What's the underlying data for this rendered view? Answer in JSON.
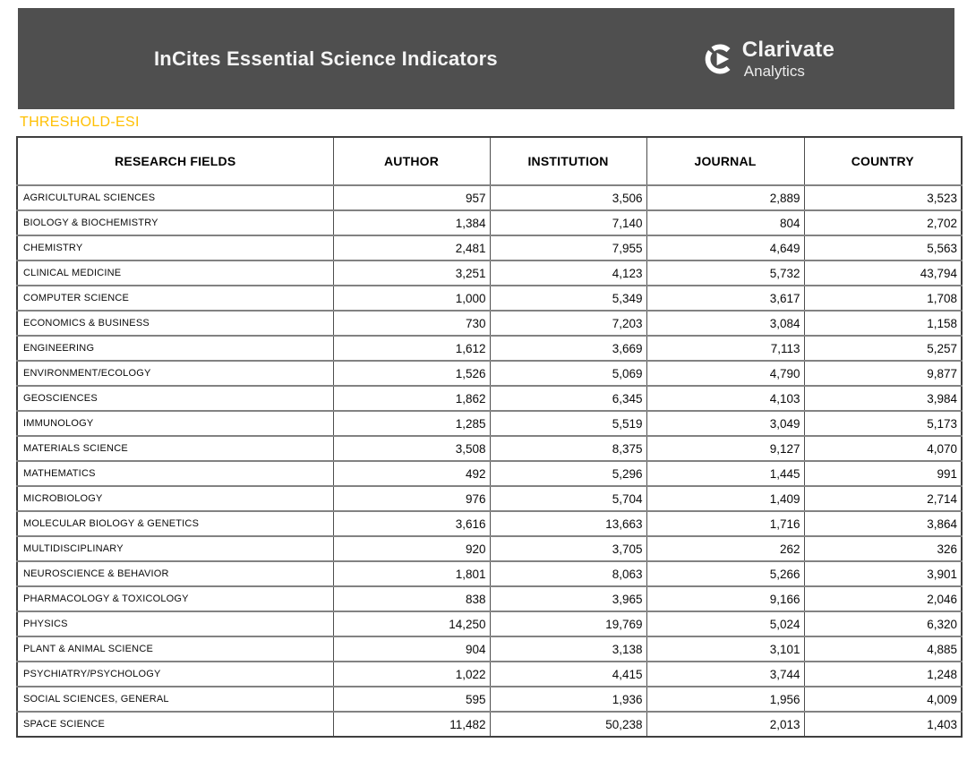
{
  "header": {
    "title": "InCites Essential Science Indicators",
    "bar_color": "#4f4f4f",
    "logo": {
      "name": "Clarivate",
      "subtitle": "Analytics"
    }
  },
  "section_label": "THRESHOLD-ESI",
  "accent_color": "#ffc003",
  "table": {
    "columns": [
      "RESEARCH FIELDS",
      "AUTHOR",
      "INSTITUTION",
      "JOURNAL",
      "COUNTRY"
    ],
    "rows": [
      {
        "field": "AGRICULTURAL SCIENCES",
        "author": "957",
        "institution": "3,506",
        "journal": "2,889",
        "country": "3,523"
      },
      {
        "field": "BIOLOGY & BIOCHEMISTRY",
        "author": "1,384",
        "institution": "7,140",
        "journal": "804",
        "country": "2,702"
      },
      {
        "field": "CHEMISTRY",
        "author": "2,481",
        "institution": "7,955",
        "journal": "4,649",
        "country": "5,563"
      },
      {
        "field": "CLINICAL MEDICINE",
        "author": "3,251",
        "institution": "4,123",
        "journal": "5,732",
        "country": "43,794"
      },
      {
        "field": "COMPUTER SCIENCE",
        "author": "1,000",
        "institution": "5,349",
        "journal": "3,617",
        "country": "1,708"
      },
      {
        "field": "ECONOMICS & BUSINESS",
        "author": "730",
        "institution": "7,203",
        "journal": "3,084",
        "country": "1,158"
      },
      {
        "field": "ENGINEERING",
        "author": "1,612",
        "institution": "3,669",
        "journal": "7,113",
        "country": "5,257"
      },
      {
        "field": "ENVIRONMENT/ECOLOGY",
        "author": "1,526",
        "institution": "5,069",
        "journal": "4,790",
        "country": "9,877"
      },
      {
        "field": "GEOSCIENCES",
        "author": "1,862",
        "institution": "6,345",
        "journal": "4,103",
        "country": "3,984"
      },
      {
        "field": "IMMUNOLOGY",
        "author": "1,285",
        "institution": "5,519",
        "journal": "3,049",
        "country": "5,173"
      },
      {
        "field": "MATERIALS SCIENCE",
        "author": "3,508",
        "institution": "8,375",
        "journal": "9,127",
        "country": "4,070"
      },
      {
        "field": "MATHEMATICS",
        "author": "492",
        "institution": "5,296",
        "journal": "1,445",
        "country": "991"
      },
      {
        "field": "MICROBIOLOGY",
        "author": "976",
        "institution": "5,704",
        "journal": "1,409",
        "country": "2,714"
      },
      {
        "field": "MOLECULAR BIOLOGY & GENETICS",
        "author": "3,616",
        "institution": "13,663",
        "journal": "1,716",
        "country": "3,864"
      },
      {
        "field": "MULTIDISCIPLINARY",
        "author": "920",
        "institution": "3,705",
        "journal": "262",
        "country": "326"
      },
      {
        "field": "NEUROSCIENCE & BEHAVIOR",
        "author": "1,801",
        "institution": "8,063",
        "journal": "5,266",
        "country": "3,901"
      },
      {
        "field": "PHARMACOLOGY & TOXICOLOGY",
        "author": "838",
        "institution": "3,965",
        "journal": "9,166",
        "country": "2,046"
      },
      {
        "field": "PHYSICS",
        "author": "14,250",
        "institution": "19,769",
        "journal": "5,024",
        "country": "6,320"
      },
      {
        "field": "PLANT & ANIMAL SCIENCE",
        "author": "904",
        "institution": "3,138",
        "journal": "3,101",
        "country": "4,885"
      },
      {
        "field": "PSYCHIATRY/PSYCHOLOGY",
        "author": "1,022",
        "institution": "4,415",
        "journal": "3,744",
        "country": "1,248"
      },
      {
        "field": "SOCIAL SCIENCES, GENERAL",
        "author": "595",
        "institution": "1,936",
        "journal": "1,956",
        "country": "4,009"
      },
      {
        "field": "SPACE SCIENCE",
        "author": "11,482",
        "institution": "50,238",
        "journal": "2,013",
        "country": "1,403"
      }
    ]
  }
}
